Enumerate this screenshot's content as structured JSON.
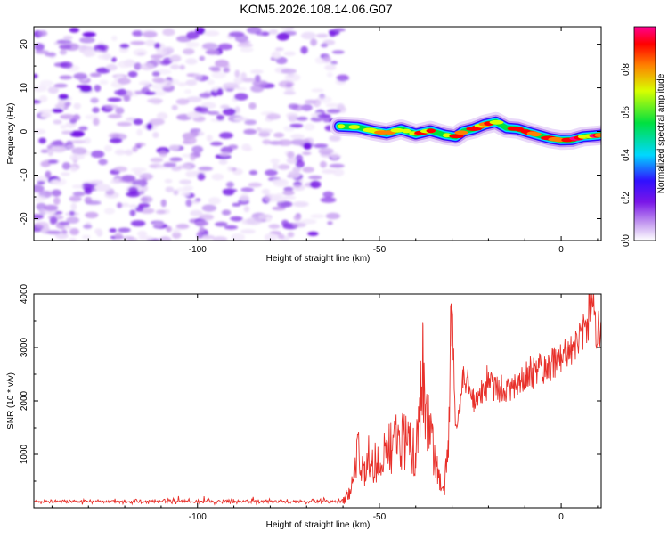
{
  "title": "KOM5.2026.108.14.06.G07",
  "chart_data": [
    {
      "type": "heatmap",
      "name": "spectrogram",
      "xlabel": "Height of straight line (km)",
      "ylabel": "Frequency (Hz)",
      "xlim": [
        -145,
        11
      ],
      "ylim": [
        -25,
        24
      ],
      "xticks": [
        -100,
        -50,
        0
      ],
      "yticks": [
        -20,
        -10,
        0,
        10,
        20
      ],
      "noise_region_x": [
        -145,
        -62
      ],
      "signal_track": [
        [
          -61,
          1.2
        ],
        [
          -56,
          1.0
        ],
        [
          -52,
          0.2
        ],
        [
          -48,
          -0.4
        ],
        [
          -44,
          0.5
        ],
        [
          -40,
          -0.6
        ],
        [
          -36,
          0.2
        ],
        [
          -32,
          -0.8
        ],
        [
          -29,
          -1.2
        ],
        [
          -27,
          0.0
        ],
        [
          -24,
          0.6
        ],
        [
          -21,
          1.6
        ],
        [
          -18,
          2.2
        ],
        [
          -15,
          0.8
        ],
        [
          -12,
          0.6
        ],
        [
          -9,
          -0.2
        ],
        [
          -6,
          -0.9
        ],
        [
          -3,
          -1.6
        ],
        [
          0,
          -2.0
        ],
        [
          3,
          -1.9
        ],
        [
          6,
          -1.2
        ],
        [
          9,
          -1.0
        ],
        [
          11,
          -0.8
        ]
      ],
      "colorbar": {
        "label": "Normalized spectral amplitude",
        "range": [
          0,
          1
        ],
        "ticks": [
          "0.0",
          "0.2",
          "0.4",
          "0.6",
          "0.8"
        ],
        "colors": [
          "#ffffff",
          "#c59cf0",
          "#7a16e8",
          "#3010ff",
          "#00d8ff",
          "#00e040",
          "#d8ff00",
          "#ff8000",
          "#ff0000",
          "#ff0090"
        ]
      }
    },
    {
      "type": "line",
      "name": "snr",
      "xlabel": "Height of straight line (km)",
      "ylabel": "SNR (10 * v/v)",
      "xlim": [
        -145,
        11
      ],
      "ylim": [
        0,
        4000
      ],
      "xticks": [
        -100,
        -50,
        0
      ],
      "yticks": [
        1000,
        2000,
        3000,
        4000
      ],
      "color": "#e8302a",
      "baseline_segment": {
        "x": [
          -145,
          -60
        ],
        "mean": 120,
        "noise": 55
      },
      "keypoints": [
        [
          -60,
          120
        ],
        [
          -58,
          300
        ],
        [
          -56,
          1100
        ],
        [
          -54,
          700
        ],
        [
          -50,
          900
        ],
        [
          -46,
          1200
        ],
        [
          -42,
          1300
        ],
        [
          -40,
          1000
        ],
        [
          -38,
          2500
        ],
        [
          -36,
          1300
        ],
        [
          -34,
          600
        ],
        [
          -32,
          400
        ],
        [
          -31,
          1500
        ],
        [
          -30,
          3700
        ],
        [
          -29,
          1400
        ],
        [
          -27,
          2400
        ],
        [
          -24,
          2000
        ],
        [
          -20,
          2300
        ],
        [
          -15,
          2200
        ],
        [
          -10,
          2450
        ],
        [
          -5,
          2600
        ],
        [
          0,
          2800
        ],
        [
          4,
          3100
        ],
        [
          7,
          3300
        ],
        [
          8.5,
          4000
        ],
        [
          10,
          3200
        ],
        [
          11,
          3500
        ]
      ]
    }
  ]
}
